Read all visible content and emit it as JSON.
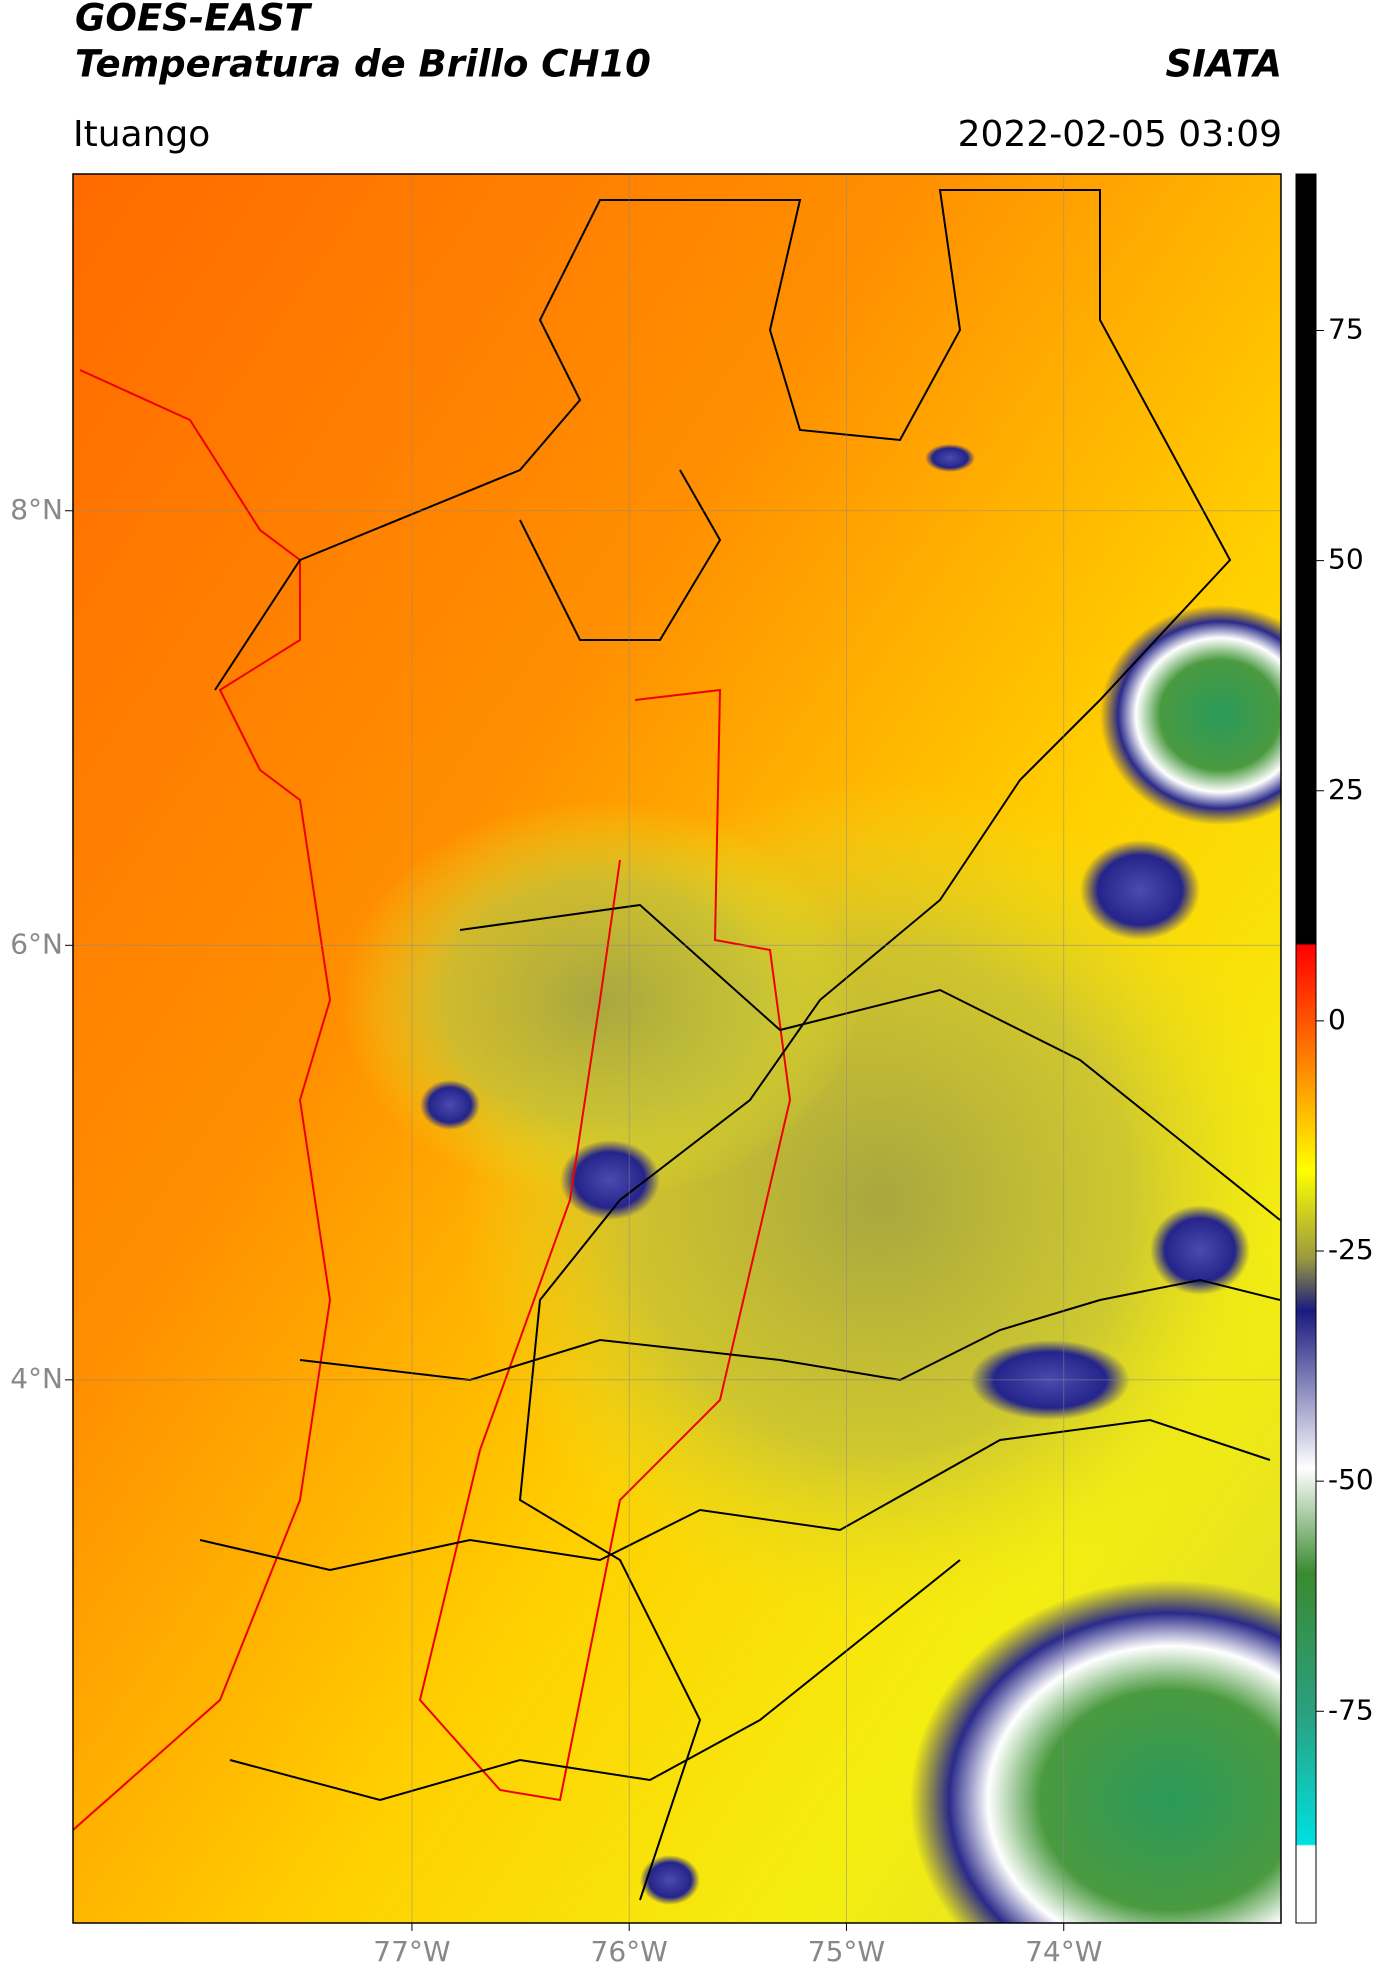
{
  "chart_data": {
    "type": "map",
    "title": "GOES-EAST",
    "subtitle": "Temperatura de Brillo CH10",
    "source": "SIATA",
    "location": "Ituango",
    "datetime": "2022-02-05 03:09",
    "xlim": [
      -78.56,
      -73.0
    ],
    "ylim": [
      1.5,
      9.55
    ],
    "xticks": [
      {
        "value": -77,
        "label": "77°W"
      },
      {
        "value": -76,
        "label": "76°W"
      },
      {
        "value": -75,
        "label": "75°W"
      },
      {
        "value": -74,
        "label": "74°W"
      }
    ],
    "yticks": [
      {
        "value": 4,
        "label": "4°N"
      },
      {
        "value": 6,
        "label": "6°N"
      },
      {
        "value": 8,
        "label": "8°N"
      }
    ],
    "grid": true,
    "colorbar": {
      "lim": [
        -98,
        92
      ],
      "ticks": [
        75,
        50,
        25,
        0,
        -25,
        -50,
        -75
      ]
    }
  }
}
